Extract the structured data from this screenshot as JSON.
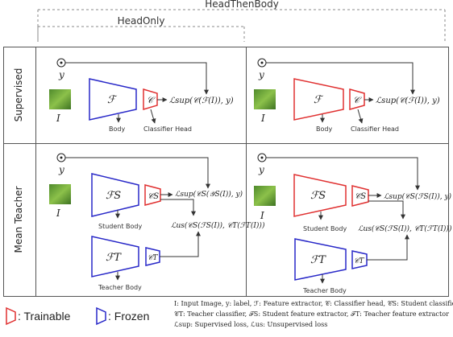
{
  "bracket_labels": {
    "outer": "HeadThenBody",
    "inner": "HeadOnly"
  },
  "row_labels": {
    "supervised": "Supervised",
    "mean_teacher": "Mean Teacher"
  },
  "supervised_panel": {
    "label_symbol": "y",
    "image_symbol": "I",
    "extractor_symbol": "ℱ",
    "classifier_symbol": "𝒞",
    "loss": "ℒsup(𝒞(ℱ(I)), y)",
    "body_label": "Body",
    "head_label": "Classifier Head"
  },
  "mean_teacher_panel": {
    "label_symbol": "y",
    "image_symbol": "I",
    "student_extractor": "ℱS",
    "student_classifier": "𝒞S",
    "teacher_extractor": "ℱT",
    "teacher_classifier": "𝒞T",
    "sup_loss_left": "ℒsup(𝒞S(𝒴S(I)), y)",
    "sup_loss_right": "ℒsup(𝒞S(ℱS(I)), y)",
    "unsup_loss": "ℒus(𝒞S(ℱS(I)), 𝒞T(ℱT(I)))",
    "student_body_label": "Student Body",
    "teacher_body_label": "Teacher Body"
  },
  "legend": {
    "trainable_label": ": Trainable",
    "frozen_label": ": Frozen",
    "trainable_color": "#e03030",
    "frozen_color": "#2828c8"
  },
  "notation": {
    "line1": "I: Input Image,    y: label,   ℱ: Feature extractor,    𝒞: Classifier head,    𝒞S: Student classifier,",
    "line2": "𝒞T: Teacher classifier,    ℱS: Student feature extractor,    ℱT: Teacher feature extractor",
    "line3": "ℒsup: Supervised loss,    ℒus: Unsupervised loss"
  }
}
